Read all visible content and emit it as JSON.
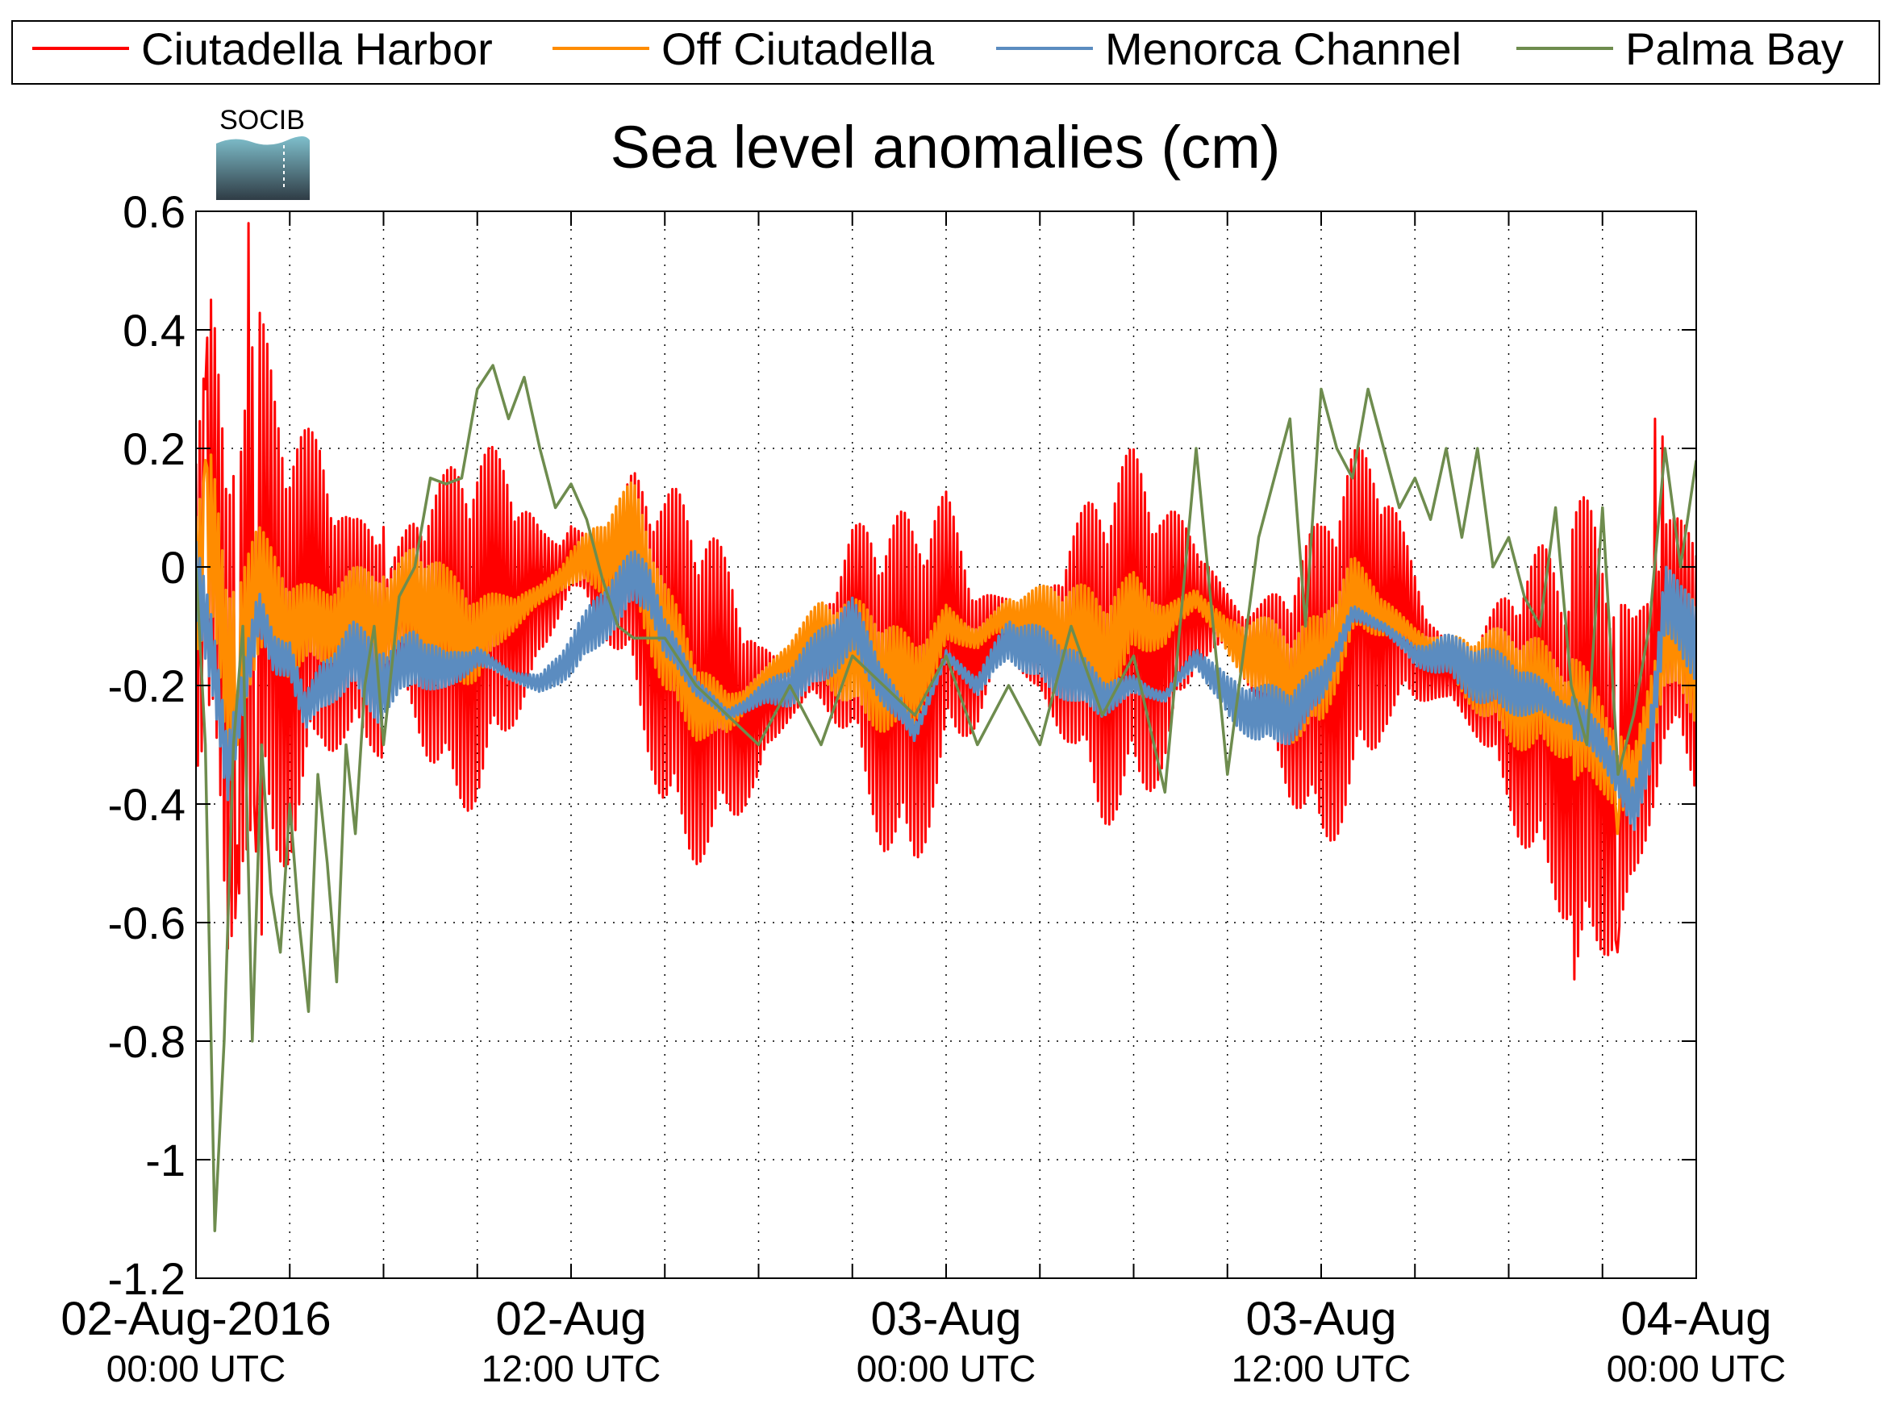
{
  "chart_data": {
    "type": "line",
    "title": "Sea level anomalies (cm)",
    "xlabel": "",
    "ylabel": "",
    "ylim": [
      -1.2,
      0.6
    ],
    "yticks": [
      0.6,
      0.4,
      0.2,
      0,
      -0.2,
      -0.4,
      -0.6,
      -0.8,
      -1,
      -1.2
    ],
    "ytick_labels": [
      "0.6",
      "0.4",
      "0.2",
      "0",
      "-0.2",
      "-0.4",
      "-0.6",
      "-0.8",
      "-1",
      "-1.2"
    ],
    "xlim_hours": [
      0,
      48
    ],
    "xticks_hours": [
      0,
      3,
      6,
      9,
      12,
      15,
      18,
      21,
      24,
      27,
      30,
      33,
      36,
      39,
      42,
      45,
      48
    ],
    "xtick_labels": [
      {
        "hour": 0,
        "date": "02-Aug-2016",
        "time": "00:00 UTC"
      },
      {
        "hour": 12,
        "date": "02-Aug",
        "time": "12:00 UTC"
      },
      {
        "hour": 24,
        "date": "03-Aug",
        "time": "00:00 UTC"
      },
      {
        "hour": 36,
        "date": "03-Aug",
        "time": "12:00 UTC"
      },
      {
        "hour": 48,
        "date": "04-Aug",
        "time": "00:00 UTC"
      }
    ],
    "grid": true,
    "legend_position": "top",
    "series": [
      {
        "name": "Ciutadella Harbor",
        "color": "#ff0000",
        "oscillation_amplitude": 0.18,
        "points": [
          [
            0,
            -0.02
          ],
          [
            0.5,
            0.1
          ],
          [
            1,
            -0.3
          ],
          [
            1.5,
            -0.05
          ],
          [
            2,
            0.0
          ],
          [
            2.5,
            -0.1
          ],
          [
            3,
            -0.12
          ],
          [
            4,
            -0.05
          ],
          [
            5,
            -0.12
          ],
          [
            6,
            -0.1
          ],
          [
            7,
            -0.08
          ],
          [
            8,
            -0.12
          ],
          [
            9,
            -0.1
          ],
          [
            10,
            -0.05
          ],
          [
            11,
            -0.06
          ],
          [
            12,
            0.02
          ],
          [
            13,
            -0.03
          ],
          [
            14,
            -0.02
          ],
          [
            15,
            -0.15
          ],
          [
            16,
            -0.2
          ],
          [
            17,
            -0.22
          ],
          [
            18,
            -0.25
          ],
          [
            19,
            -0.2
          ],
          [
            20,
            -0.15
          ],
          [
            21,
            -0.12
          ],
          [
            22,
            -0.2
          ],
          [
            23,
            -0.22
          ],
          [
            24,
            -0.1
          ],
          [
            25,
            -0.15
          ],
          [
            26,
            -0.1
          ],
          [
            27,
            -0.15
          ],
          [
            28,
            -0.12
          ],
          [
            29,
            -0.15
          ],
          [
            30,
            -0.1
          ],
          [
            31,
            -0.12
          ],
          [
            32,
            -0.05
          ],
          [
            33,
            -0.1
          ],
          [
            34,
            -0.15
          ],
          [
            35,
            -0.2
          ],
          [
            36,
            -0.2
          ],
          [
            37,
            -0.1
          ],
          [
            38,
            -0.05
          ],
          [
            39,
            -0.12
          ],
          [
            40,
            -0.18
          ],
          [
            41,
            -0.2
          ],
          [
            42,
            -0.22
          ],
          [
            43,
            -0.25
          ],
          [
            44,
            -0.3
          ],
          [
            45,
            -0.3
          ],
          [
            46,
            -0.35
          ],
          [
            47,
            -0.1
          ],
          [
            48,
            -0.15
          ]
        ],
        "spikes": [
          [
            1.7,
            0.58
          ],
          [
            1.3,
            -0.47
          ],
          [
            1.9,
            -0.48
          ],
          [
            2.1,
            -0.62
          ],
          [
            45.5,
            -0.65
          ],
          [
            46.7,
            0.25
          ],
          [
            46.9,
            0.22
          ],
          [
            0.3,
            0.3
          ]
        ]
      },
      {
        "name": "Off Ciutadella",
        "color": "#ff8c00",
        "oscillation_amplitude": 0.06,
        "points": [
          [
            0,
            0.0
          ],
          [
            0.5,
            0.05
          ],
          [
            1,
            -0.2
          ],
          [
            1.5,
            -0.1
          ],
          [
            2,
            -0.05
          ],
          [
            3,
            -0.1
          ],
          [
            4,
            -0.1
          ],
          [
            5,
            -0.08
          ],
          [
            6,
            -0.1
          ],
          [
            7,
            -0.05
          ],
          [
            8,
            -0.1
          ],
          [
            9,
            -0.12
          ],
          [
            10,
            -0.08
          ],
          [
            11,
            -0.05
          ],
          [
            12,
            0.0
          ],
          [
            13,
            0.02
          ],
          [
            14,
            0.05
          ],
          [
            15,
            -0.12
          ],
          [
            16,
            -0.22
          ],
          [
            17,
            -0.25
          ],
          [
            18,
            -0.2
          ],
          [
            19,
            -0.15
          ],
          [
            20,
            -0.12
          ],
          [
            21,
            -0.15
          ],
          [
            22,
            -0.18
          ],
          [
            23,
            -0.2
          ],
          [
            24,
            -0.1
          ],
          [
            25,
            -0.12
          ],
          [
            26,
            -0.08
          ],
          [
            27,
            -0.1
          ],
          [
            28,
            -0.12
          ],
          [
            29,
            -0.15
          ],
          [
            30,
            -0.08
          ],
          [
            31,
            -0.1
          ],
          [
            32,
            -0.05
          ],
          [
            33,
            -0.12
          ],
          [
            34,
            -0.15
          ],
          [
            35,
            -0.2
          ],
          [
            36,
            -0.18
          ],
          [
            37,
            -0.05
          ],
          [
            38,
            -0.08
          ],
          [
            39,
            -0.12
          ],
          [
            40,
            -0.15
          ],
          [
            41,
            -0.18
          ],
          [
            42,
            -0.2
          ],
          [
            43,
            -0.22
          ],
          [
            44,
            -0.25
          ],
          [
            45,
            -0.3
          ],
          [
            46,
            -0.38
          ],
          [
            47,
            -0.12
          ],
          [
            48,
            -0.15
          ]
        ],
        "spikes": [
          [
            0.3,
            0.18
          ],
          [
            1.3,
            -0.3
          ],
          [
            45.5,
            -0.45
          ]
        ]
      },
      {
        "name": "Menorca Channel",
        "color": "#5b8cc0",
        "oscillation_amplitude": 0.03,
        "points": [
          [
            0,
            0.0
          ],
          [
            0.5,
            -0.15
          ],
          [
            1,
            -0.35
          ],
          [
            1.5,
            -0.2
          ],
          [
            2,
            -0.08
          ],
          [
            2.5,
            -0.15
          ],
          [
            3,
            -0.15
          ],
          [
            3.5,
            -0.25
          ],
          [
            4,
            -0.2
          ],
          [
            5,
            -0.15
          ],
          [
            6,
            -0.2
          ],
          [
            7,
            -0.15
          ],
          [
            8,
            -0.18
          ],
          [
            9,
            -0.15
          ],
          [
            10,
            -0.18
          ],
          [
            11,
            -0.2
          ],
          [
            12,
            -0.15
          ],
          [
            13,
            -0.08
          ],
          [
            14,
            -0.02
          ],
          [
            14.5,
            -0.03
          ],
          [
            15,
            -0.12
          ],
          [
            16,
            -0.2
          ],
          [
            17,
            -0.25
          ],
          [
            18,
            -0.22
          ],
          [
            19,
            -0.2
          ],
          [
            20,
            -0.15
          ],
          [
            21,
            -0.1
          ],
          [
            22,
            -0.2
          ],
          [
            23,
            -0.28
          ],
          [
            24,
            -0.15
          ],
          [
            25,
            -0.2
          ],
          [
            26,
            -0.12
          ],
          [
            27,
            -0.15
          ],
          [
            28,
            -0.18
          ],
          [
            29,
            -0.22
          ],
          [
            30,
            -0.2
          ],
          [
            31,
            -0.22
          ],
          [
            32,
            -0.15
          ],
          [
            33,
            -0.22
          ],
          [
            34,
            -0.25
          ],
          [
            35,
            -0.25
          ],
          [
            36,
            -0.2
          ],
          [
            37,
            -0.08
          ],
          [
            38,
            -0.1
          ],
          [
            39,
            -0.15
          ],
          [
            40,
            -0.15
          ],
          [
            41,
            -0.18
          ],
          [
            42,
            -0.2
          ],
          [
            43,
            -0.22
          ],
          [
            44,
            -0.25
          ],
          [
            45,
            -0.3
          ],
          [
            45.5,
            -0.35
          ],
          [
            46,
            -0.42
          ],
          [
            46.5,
            -0.3
          ],
          [
            47,
            -0.05
          ],
          [
            47.5,
            -0.1
          ],
          [
            48,
            -0.12
          ]
        ],
        "spikes": []
      },
      {
        "name": "Palma Bay",
        "color": "#6e8c4e",
        "oscillation_amplitude": 0.0,
        "points": [
          [
            0,
            0.0
          ],
          [
            0.3,
            -0.3
          ],
          [
            0.6,
            -1.12
          ],
          [
            0.9,
            -0.8
          ],
          [
            1.2,
            -0.3
          ],
          [
            1.5,
            -0.1
          ],
          [
            1.8,
            -0.8
          ],
          [
            2.1,
            -0.3
          ],
          [
            2.4,
            -0.55
          ],
          [
            2.7,
            -0.65
          ],
          [
            3.0,
            -0.4
          ],
          [
            3.3,
            -0.6
          ],
          [
            3.6,
            -0.75
          ],
          [
            3.9,
            -0.35
          ],
          [
            4.2,
            -0.5
          ],
          [
            4.5,
            -0.7
          ],
          [
            4.8,
            -0.3
          ],
          [
            5.1,
            -0.45
          ],
          [
            5.4,
            -0.2
          ],
          [
            5.7,
            -0.1
          ],
          [
            6,
            -0.3
          ],
          [
            6.5,
            -0.05
          ],
          [
            7,
            0.0
          ],
          [
            7.5,
            0.15
          ],
          [
            8,
            0.14
          ],
          [
            8.5,
            0.15
          ],
          [
            9,
            0.3
          ],
          [
            9.5,
            0.34
          ],
          [
            10,
            0.25
          ],
          [
            10.5,
            0.32
          ],
          [
            11,
            0.2
          ],
          [
            11.5,
            0.1
          ],
          [
            12,
            0.14
          ],
          [
            12.5,
            0.08
          ],
          [
            13,
            -0.02
          ],
          [
            13.5,
            -0.1
          ],
          [
            14,
            -0.12
          ],
          [
            15,
            -0.12
          ],
          [
            16,
            -0.2
          ],
          [
            17,
            -0.25
          ],
          [
            18,
            -0.3
          ],
          [
            19,
            -0.2
          ],
          [
            20,
            -0.3
          ],
          [
            21,
            -0.15
          ],
          [
            22,
            -0.2
          ],
          [
            23,
            -0.25
          ],
          [
            24,
            -0.15
          ],
          [
            25,
            -0.3
          ],
          [
            26,
            -0.2
          ],
          [
            27,
            -0.3
          ],
          [
            28,
            -0.1
          ],
          [
            29,
            -0.25
          ],
          [
            30,
            -0.15
          ],
          [
            31,
            -0.38
          ],
          [
            32,
            0.2
          ],
          [
            33,
            -0.35
          ],
          [
            34,
            0.05
          ],
          [
            35,
            0.25
          ],
          [
            35.5,
            -0.1
          ],
          [
            36,
            0.3
          ],
          [
            36.5,
            0.2
          ],
          [
            37,
            0.15
          ],
          [
            37.5,
            0.3
          ],
          [
            38,
            0.2
          ],
          [
            38.5,
            0.1
          ],
          [
            39,
            0.15
          ],
          [
            39.5,
            0.08
          ],
          [
            40,
            0.2
          ],
          [
            40.5,
            0.05
          ],
          [
            41,
            0.2
          ],
          [
            41.5,
            0.0
          ],
          [
            42,
            0.05
          ],
          [
            42.5,
            -0.05
          ],
          [
            43,
            -0.1
          ],
          [
            43.5,
            0.1
          ],
          [
            44,
            -0.2
          ],
          [
            44.5,
            -0.3
          ],
          [
            45,
            0.1
          ],
          [
            45.5,
            -0.35
          ],
          [
            46,
            -0.25
          ],
          [
            46.5,
            -0.1
          ],
          [
            47,
            0.2
          ],
          [
            47.5,
            0.0
          ],
          [
            48,
            0.18
          ]
        ],
        "spikes": []
      }
    ]
  },
  "logo": {
    "text": "SOCIB",
    "color_text": "#5bb8c9",
    "color_water": "#7fbfcc",
    "color_dark": "#2f3c45"
  }
}
